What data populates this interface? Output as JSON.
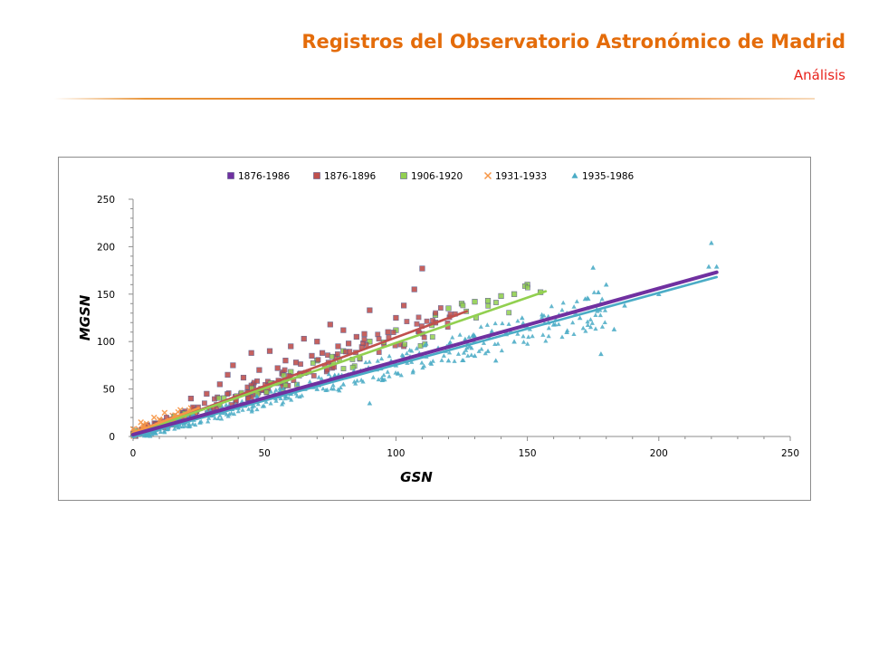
{
  "slide": {
    "title": "Registros del Observatorio Astronómico de Madrid",
    "subtitle": "Análisis"
  },
  "chart_data": {
    "type": "scatter",
    "xlabel": "GSN",
    "ylabel": "MGSN",
    "xlim": [
      0,
      250
    ],
    "ylim": [
      0,
      250
    ],
    "x_ticks": [
      "0",
      "50",
      "100",
      "150",
      "200",
      "250"
    ],
    "y_ticks": [
      "0",
      "50",
      "100",
      "150",
      "200",
      "250"
    ],
    "grid": false,
    "legend_position": "top",
    "series": [
      {
        "name": "1876-1986",
        "color": "#7030a0",
        "marker": "square",
        "trendline": {
          "x": [
            0,
            222
          ],
          "y": [
            2,
            173
          ]
        }
      },
      {
        "name": "1876-1896",
        "color": "#c0504d",
        "marker": "square",
        "trendline": {
          "x": [
            0,
            127
          ],
          "y": [
            2,
            132
          ]
        },
        "points": [
          [
            38,
            75
          ],
          [
            45,
            88
          ],
          [
            52,
            90
          ],
          [
            60,
            95
          ],
          [
            65,
            103
          ],
          [
            70,
            100
          ],
          [
            75,
            118
          ],
          [
            80,
            112
          ],
          [
            90,
            133
          ],
          [
            97,
            110
          ],
          [
            100,
            125
          ],
          [
            103,
            138
          ],
          [
            107,
            155
          ],
          [
            110,
            177
          ],
          [
            115,
            120
          ],
          [
            48,
            70
          ],
          [
            58,
            80
          ],
          [
            68,
            85
          ],
          [
            78,
            95
          ],
          [
            85,
            105
          ],
          [
            42,
            62
          ],
          [
            33,
            55
          ],
          [
            28,
            45
          ],
          [
            22,
            40
          ],
          [
            55,
            72
          ],
          [
            62,
            78
          ],
          [
            72,
            88
          ],
          [
            82,
            98
          ],
          [
            88,
            108
          ],
          [
            36,
            65
          ]
        ]
      },
      {
        "name": "1906-1920",
        "color": "#92d050",
        "marker": "square",
        "trendline": {
          "x": [
            0,
            157
          ],
          "y": [
            3,
            153
          ]
        },
        "points": [
          [
            120,
            135
          ],
          [
            130,
            142
          ],
          [
            135,
            143
          ],
          [
            140,
            148
          ],
          [
            145,
            150
          ],
          [
            150,
            160
          ],
          [
            155,
            152
          ],
          [
            125,
            140
          ],
          [
            115,
            128
          ],
          [
            100,
            112
          ],
          [
            90,
            100
          ],
          [
            80,
            90
          ],
          [
            70,
            80
          ],
          [
            60,
            68
          ]
        ]
      },
      {
        "name": "1931-1933",
        "color": "#f79646",
        "marker": "x",
        "trendline": {
          "x": [
            0,
            25
          ],
          "y": [
            4,
            30
          ]
        },
        "points": [
          [
            3,
            15
          ],
          [
            5,
            12
          ],
          [
            8,
            20
          ],
          [
            10,
            18
          ],
          [
            12,
            25
          ],
          [
            15,
            22
          ],
          [
            18,
            28
          ],
          [
            20,
            24
          ],
          [
            22,
            30
          ],
          [
            2,
            8
          ],
          [
            6,
            10
          ],
          [
            14,
            16
          ]
        ]
      },
      {
        "name": "1935-1986",
        "color": "#4bacc6",
        "marker": "triangle",
        "trendline": {
          "x": [
            0,
            222
          ],
          "y": [
            0,
            168
          ]
        },
        "points": [
          [
            175,
            178
          ],
          [
            180,
            160
          ],
          [
            178,
            87
          ],
          [
            183,
            113
          ],
          [
            187,
            138
          ],
          [
            200,
            150
          ],
          [
            220,
            204
          ],
          [
            222,
            179
          ],
          [
            219,
            179
          ],
          [
            170,
            125
          ],
          [
            165,
            130
          ],
          [
            160,
            118
          ],
          [
            172,
            145
          ],
          [
            177,
            152
          ],
          [
            165,
            110
          ],
          [
            158,
            120
          ],
          [
            162,
            128
          ],
          [
            150,
            115
          ],
          [
            145,
            100
          ],
          [
            142,
            110
          ],
          [
            148,
            125
          ],
          [
            135,
            90
          ],
          [
            130,
            85
          ],
          [
            138,
            80
          ],
          [
            128,
            95
          ],
          [
            120,
            80
          ],
          [
            110,
            85
          ],
          [
            100,
            75
          ],
          [
            95,
            60
          ],
          [
            90,
            35
          ],
          [
            80,
            55
          ],
          [
            70,
            50
          ],
          [
            60,
            45
          ],
          [
            50,
            40
          ],
          [
            40,
            30
          ],
          [
            30,
            22
          ],
          [
            20,
            15
          ],
          [
            10,
            8
          ],
          [
            5,
            3
          ]
        ]
      }
    ]
  }
}
